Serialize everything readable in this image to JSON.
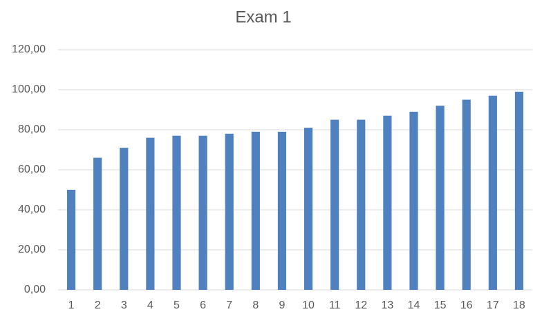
{
  "chart_data": {
    "type": "bar",
    "title": "Exam 1",
    "categories": [
      "1",
      "2",
      "3",
      "4",
      "5",
      "6",
      "7",
      "8",
      "9",
      "10",
      "11",
      "12",
      "13",
      "14",
      "15",
      "16",
      "17",
      "18"
    ],
    "values": [
      50,
      66,
      71,
      76,
      77,
      77,
      78,
      79,
      79,
      81,
      85,
      85,
      87,
      89,
      92,
      95,
      97,
      99
    ],
    "color": "#4e81bd",
    "ylim": [
      0,
      120
    ],
    "yticks": [
      {
        "value": 0,
        "label": "0,00"
      },
      {
        "value": 20,
        "label": "20,00"
      },
      {
        "value": 40,
        "label": "40,00"
      },
      {
        "value": 60,
        "label": "60,00"
      },
      {
        "value": 80,
        "label": "80,00"
      },
      {
        "value": 100,
        "label": "100,00"
      },
      {
        "value": 120,
        "label": "120,00"
      }
    ],
    "grid": true
  }
}
